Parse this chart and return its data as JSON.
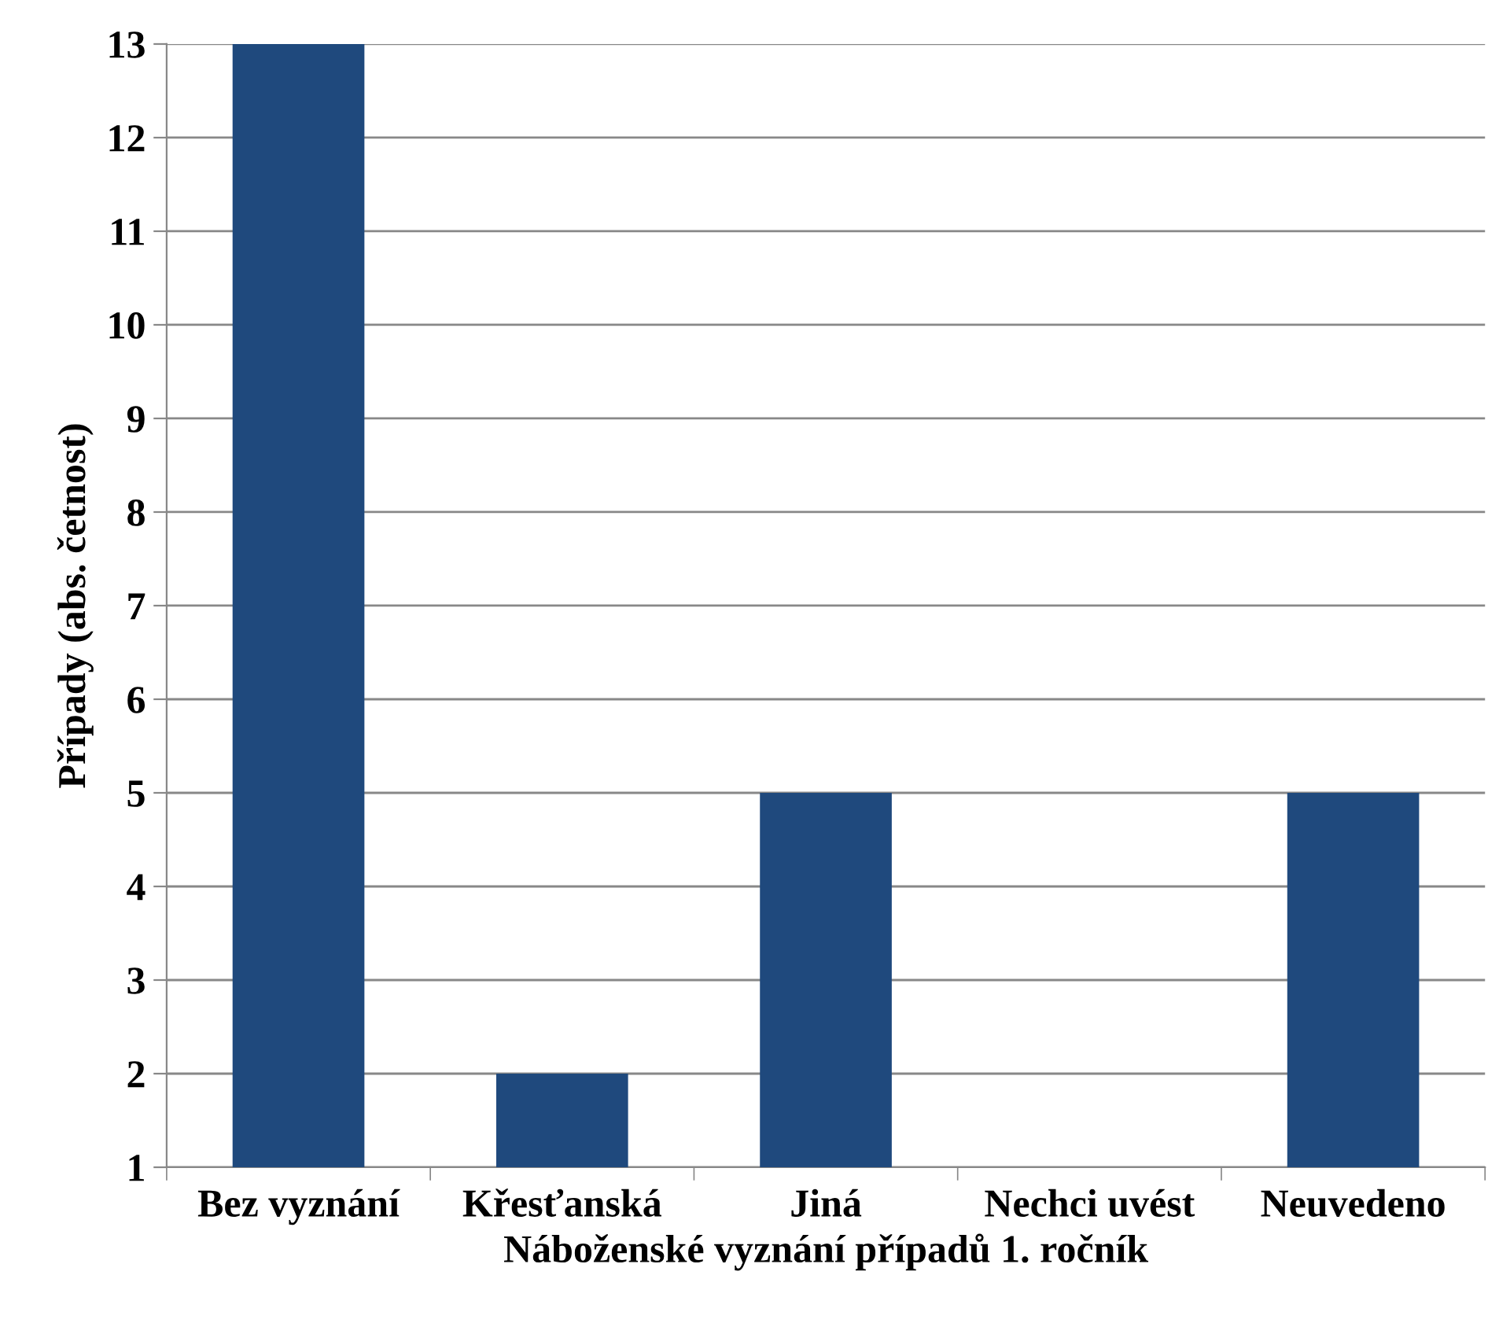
{
  "chart_data": {
    "type": "bar",
    "xlabel": "Náboženské vyznání případů 1. ročník",
    "ylabel": "Případy (abs. četnost)",
    "categories": [
      "Bez vyznání",
      "Křesťanská",
      "Jiná",
      "Nechci uvést",
      "Neuvedeno"
    ],
    "values": [
      13,
      2,
      5,
      1,
      5
    ],
    "color": "#1f497d",
    "ylim": [
      1,
      13
    ],
    "yticks": [
      1,
      2,
      3,
      4,
      5,
      6,
      7,
      8,
      9,
      10,
      11,
      12,
      13
    ],
    "grid": "y"
  }
}
